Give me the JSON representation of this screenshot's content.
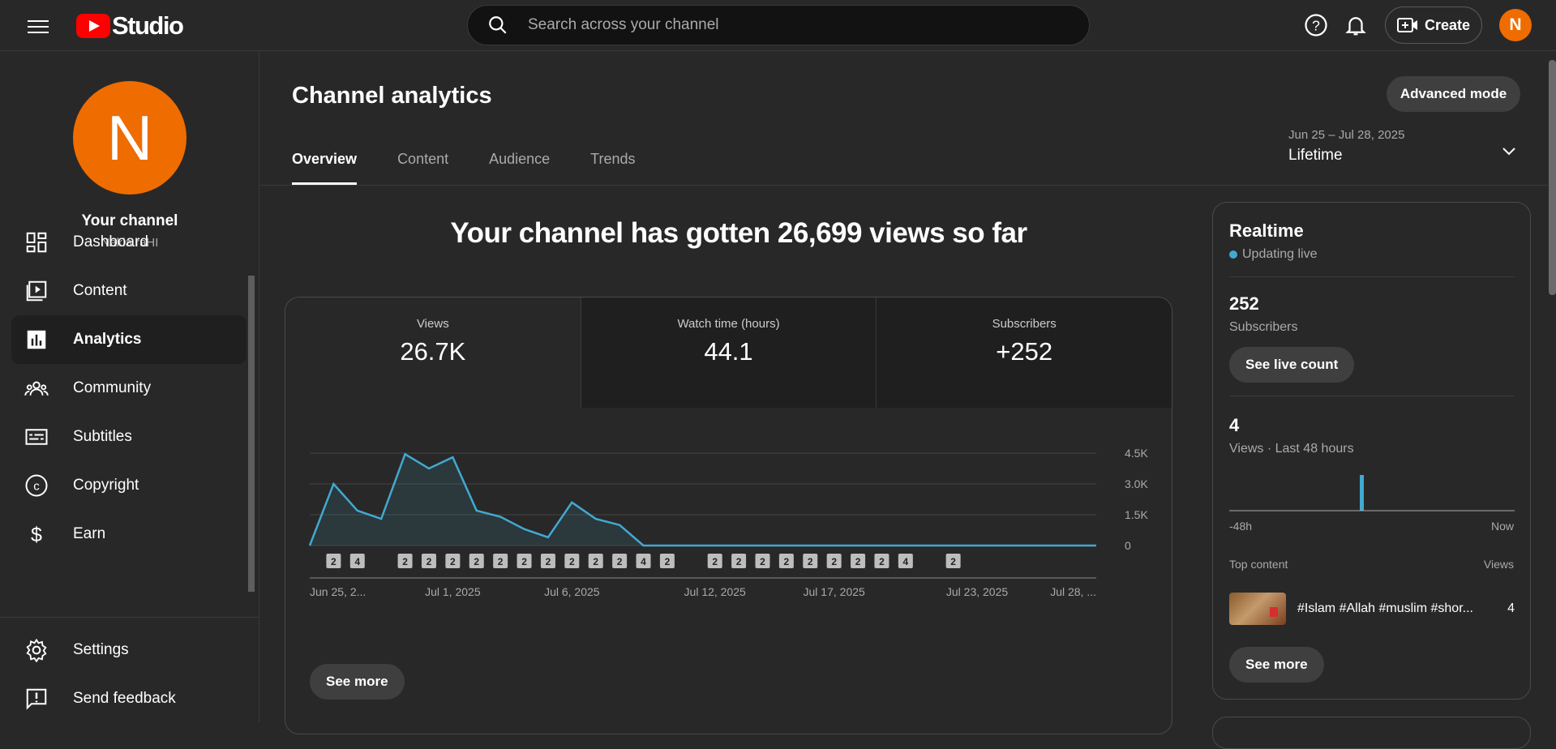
{
  "topbar": {
    "logo_text": "Studio",
    "search_placeholder": "Search across your channel",
    "create_label": "Create",
    "avatar_initial": "N"
  },
  "sidebar": {
    "avatar_initial": "N",
    "channel_name": "Your channel",
    "channel_handle": "Nakia raHI",
    "items": [
      {
        "label": "Dashboard",
        "icon": "dashboard-icon"
      },
      {
        "label": "Content",
        "icon": "content-icon"
      },
      {
        "label": "Analytics",
        "icon": "analytics-icon"
      },
      {
        "label": "Community",
        "icon": "community-icon"
      },
      {
        "label": "Subtitles",
        "icon": "subtitles-icon"
      },
      {
        "label": "Copyright",
        "icon": "copyright-icon"
      },
      {
        "label": "Earn",
        "icon": "earn-icon"
      }
    ],
    "bottom_items": [
      {
        "label": "Settings",
        "icon": "settings-icon"
      },
      {
        "label": "Send feedback",
        "icon": "feedback-icon"
      }
    ]
  },
  "main": {
    "title": "Channel analytics",
    "advanced_mode": "Advanced mode",
    "tabs": [
      {
        "label": "Overview"
      },
      {
        "label": "Content"
      },
      {
        "label": "Audience"
      },
      {
        "label": "Trends"
      }
    ],
    "date_range": {
      "dates": "Jun 25 – Jul 28, 2025",
      "period": "Lifetime"
    },
    "headline": "Your channel has gotten 26,699 views so far",
    "metrics": [
      {
        "label": "Views",
        "value": "26.7K"
      },
      {
        "label": "Watch time (hours)",
        "value": "44.1"
      },
      {
        "label": "Subscribers",
        "value": "+252"
      }
    ],
    "see_more": "See more"
  },
  "chart_data": {
    "type": "area",
    "x": [
      "Jun 25",
      "Jun 26",
      "Jun 27",
      "Jun 28",
      "Jun 29",
      "Jun 30",
      "Jul 1",
      "Jul 2",
      "Jul 3",
      "Jul 4",
      "Jul 5",
      "Jul 6",
      "Jul 7",
      "Jul 8",
      "Jul 9",
      "Jul 10",
      "Jul 11",
      "Jul 12",
      "Jul 13",
      "Jul 14",
      "Jul 15",
      "Jul 16",
      "Jul 17",
      "Jul 18",
      "Jul 19",
      "Jul 20",
      "Jul 21",
      "Jul 22",
      "Jul 23",
      "Jul 24",
      "Jul 25",
      "Jul 26",
      "Jul 27",
      "Jul 28"
    ],
    "values": [
      0,
      3000,
      1700,
      1300,
      4450,
      3750,
      4300,
      1700,
      1400,
      800,
      400,
      2100,
      1300,
      1000,
      0,
      0,
      0,
      0,
      0,
      0,
      0,
      0,
      0,
      0,
      0,
      0,
      0,
      0,
      0,
      0,
      0,
      0,
      0,
      0
    ],
    "ylim": [
      0,
      4500
    ],
    "yticks": [
      "4.5K",
      "3.0K",
      "1.5K",
      "0"
    ],
    "xtick_labels": [
      "Jun 25, 2...",
      "Jul 1, 2025",
      "Jul 6, 2025",
      "Jul 12, 2025",
      "Jul 17, 2025",
      "Jul 23, 2025",
      "Jul 28, ..."
    ],
    "xtick_index": [
      0,
      6,
      11,
      17,
      22,
      28,
      33
    ],
    "markers": [
      {
        "index": 1,
        "label": "2"
      },
      {
        "index": 2,
        "label": "4"
      },
      {
        "index": 4,
        "label": "2"
      },
      {
        "index": 5,
        "label": "2"
      },
      {
        "index": 6,
        "label": "2"
      },
      {
        "index": 7,
        "label": "2"
      },
      {
        "index": 8,
        "label": "2"
      },
      {
        "index": 9,
        "label": "2"
      },
      {
        "index": 10,
        "label": "2"
      },
      {
        "index": 11,
        "label": "2"
      },
      {
        "index": 12,
        "label": "2"
      },
      {
        "index": 13,
        "label": "2"
      },
      {
        "index": 14,
        "label": "4"
      },
      {
        "index": 15,
        "label": "2"
      },
      {
        "index": 17,
        "label": "2"
      },
      {
        "index": 18,
        "label": "2"
      },
      {
        "index": 19,
        "label": "2"
      },
      {
        "index": 20,
        "label": "2"
      },
      {
        "index": 21,
        "label": "2"
      },
      {
        "index": 22,
        "label": "2"
      },
      {
        "index": 23,
        "label": "2"
      },
      {
        "index": 24,
        "label": "2"
      },
      {
        "index": 25,
        "label": "4"
      },
      {
        "index": 27,
        "label": "2"
      }
    ],
    "line_color": "#41a9d1",
    "grid": true
  },
  "realtime": {
    "title": "Realtime",
    "live_text": "Updating live",
    "subscribers_value": "252",
    "subscribers_label": "Subscribers",
    "see_live_count": "See live count",
    "views_value": "4",
    "views_label": "Views · Last 48 hours",
    "axis_start": "-48h",
    "axis_end": "Now",
    "top_content_label": "Top content",
    "views_col_label": "Views",
    "top_content": {
      "title": "#Islam #Allah #muslim #shor...",
      "views": "4"
    },
    "see_more": "See more",
    "accent": "#41a9d1"
  }
}
